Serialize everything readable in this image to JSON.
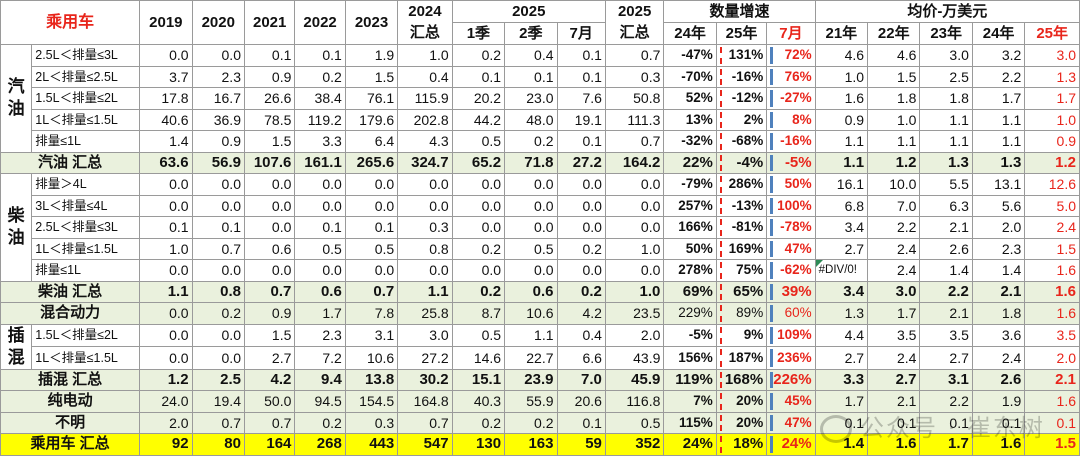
{
  "header": {
    "title": "乘用车",
    "years": [
      "2019",
      "2020",
      "2021",
      "2022",
      "2023"
    ],
    "y2024": "2024",
    "y2024_sub": "汇总",
    "y2025": "2025",
    "q1": "1季",
    "q2": "2季",
    "m7": "7月",
    "y2025t": "2025",
    "y2025t_sub": "汇总",
    "growth": "数量增速",
    "g24": "24年",
    "g25": "25年",
    "g7": "7月",
    "price": "均价-万美元",
    "p21": "21年",
    "p22": "22年",
    "p23": "23年",
    "p24": "24年",
    "p25": "25年"
  },
  "groups": [
    {
      "label": "汽油",
      "rows": [
        {
          "label": "2.5L＜排量≤3L",
          "v": [
            "0.0",
            "0.0",
            "0.1",
            "0.1",
            "1.9",
            "1.0",
            "0.2",
            "0.4",
            "0.1",
            "0.7"
          ],
          "g": [
            "-47%",
            "131%",
            "72%"
          ],
          "p": [
            "4.6",
            "4.6",
            "3.0",
            "3.2",
            "3.0"
          ]
        },
        {
          "label": "2L＜排量≤2.5L",
          "v": [
            "3.7",
            "2.3",
            "0.9",
            "0.2",
            "1.5",
            "0.4",
            "0.1",
            "0.1",
            "0.1",
            "0.3"
          ],
          "g": [
            "-70%",
            "-16%",
            "76%"
          ],
          "p": [
            "1.0",
            "1.5",
            "2.5",
            "2.2",
            "1.3"
          ]
        },
        {
          "label": "1.5L＜排量≤2L",
          "v": [
            "17.8",
            "16.7",
            "26.6",
            "38.4",
            "76.1",
            "115.9",
            "20.2",
            "23.0",
            "7.6",
            "50.8"
          ],
          "g": [
            "52%",
            "-12%",
            "-27%"
          ],
          "p": [
            "1.6",
            "1.8",
            "1.8",
            "1.7",
            "1.7"
          ]
        },
        {
          "label": "1L＜排量≤1.5L",
          "v": [
            "40.6",
            "36.9",
            "78.5",
            "119.2",
            "179.6",
            "202.8",
            "44.2",
            "48.0",
            "19.1",
            "111.3"
          ],
          "g": [
            "13%",
            "2%",
            "8%"
          ],
          "p": [
            "0.9",
            "1.0",
            "1.1",
            "1.1",
            "1.0"
          ]
        },
        {
          "label": "排量≤1L",
          "v": [
            "1.4",
            "0.9",
            "1.5",
            "3.3",
            "6.4",
            "4.3",
            "0.5",
            "0.2",
            "0.1",
            "0.7"
          ],
          "g": [
            "-32%",
            "-68%",
            "-16%"
          ],
          "p": [
            "1.1",
            "1.1",
            "1.1",
            "1.1",
            "0.9"
          ]
        }
      ],
      "total": {
        "label": "汽油 汇总",
        "v": [
          "63.6",
          "56.9",
          "107.6",
          "161.1",
          "265.6",
          "324.7",
          "65.2",
          "71.8",
          "27.2",
          "164.2"
        ],
        "g": [
          "22%",
          "-4%",
          "-5%"
        ],
        "p": [
          "1.1",
          "1.2",
          "1.3",
          "1.3",
          "1.2"
        ]
      }
    },
    {
      "label": "柴油",
      "rows": [
        {
          "label": "排量＞4L",
          "v": [
            "0.0",
            "0.0",
            "0.0",
            "0.0",
            "0.0",
            "0.0",
            "0.0",
            "0.0",
            "0.0",
            "0.0"
          ],
          "g": [
            "-79%",
            "286%",
            "50%"
          ],
          "p": [
            "16.1",
            "10.0",
            "5.5",
            "13.1",
            "12.6"
          ]
        },
        {
          "label": "3L＜排量≤4L",
          "v": [
            "0.0",
            "0.0",
            "0.0",
            "0.0",
            "0.0",
            "0.0",
            "0.0",
            "0.0",
            "0.0",
            "0.0"
          ],
          "g": [
            "257%",
            "-13%",
            "100%"
          ],
          "p": [
            "6.8",
            "7.0",
            "6.3",
            "5.6",
            "5.0"
          ]
        },
        {
          "label": "2.5L＜排量≤3L",
          "v": [
            "0.1",
            "0.1",
            "0.0",
            "0.1",
            "0.1",
            "0.3",
            "0.0",
            "0.0",
            "0.0",
            "0.0"
          ],
          "g": [
            "166%",
            "-81%",
            "-78%"
          ],
          "p": [
            "3.4",
            "2.2",
            "2.1",
            "2.0",
            "2.4"
          ]
        },
        {
          "label": "1L＜排量≤1.5L",
          "v": [
            "1.0",
            "0.7",
            "0.6",
            "0.5",
            "0.5",
            "0.8",
            "0.2",
            "0.5",
            "0.2",
            "1.0"
          ],
          "g": [
            "50%",
            "169%",
            "47%"
          ],
          "p": [
            "2.7",
            "2.4",
            "2.6",
            "2.3",
            "1.5"
          ]
        },
        {
          "label": "排量≤1L",
          "v": [
            "0.0",
            "0.0",
            "0.0",
            "0.0",
            "0.0",
            "0.0",
            "0.0",
            "0.0",
            "0.0",
            "0.0"
          ],
          "g": [
            "278%",
            "75%",
            "-62%"
          ],
          "p": [
            "#DIV/0!",
            "2.4",
            "1.4",
            "1.4",
            "1.6"
          ]
        }
      ],
      "total": {
        "label": "柴油 汇总",
        "v": [
          "1.1",
          "0.8",
          "0.7",
          "0.6",
          "0.7",
          "1.1",
          "0.2",
          "0.6",
          "0.2",
          "1.0"
        ],
        "g": [
          "69%",
          "65%",
          "39%"
        ],
        "p": [
          "3.4",
          "3.0",
          "2.2",
          "2.1",
          "1.6"
        ]
      }
    },
    {
      "label": "",
      "rows": [],
      "total": {
        "label": "混合动力",
        "v": [
          "0.0",
          "0.2",
          "0.9",
          "1.7",
          "7.8",
          "25.8",
          "8.7",
          "10.6",
          "4.2",
          "23.5"
        ],
        "g": [
          "229%",
          "89%",
          "60%"
        ],
        "p": [
          "1.3",
          "1.7",
          "2.1",
          "1.8",
          "1.6"
        ]
      }
    },
    {
      "label": "插混",
      "rows": [
        {
          "label": "1.5L＜排量≤2L",
          "v": [
            "0.0",
            "0.0",
            "1.5",
            "2.3",
            "3.1",
            "3.0",
            "0.5",
            "1.1",
            "0.4",
            "2.0"
          ],
          "g": [
            "-5%",
            "9%",
            "109%"
          ],
          "p": [
            "4.4",
            "3.5",
            "3.5",
            "3.6",
            "3.5"
          ]
        },
        {
          "label": "1L＜排量≤1.5L",
          "v": [
            "0.0",
            "0.0",
            "2.7",
            "7.2",
            "10.6",
            "27.2",
            "14.6",
            "22.7",
            "6.6",
            "43.9"
          ],
          "g": [
            "156%",
            "187%",
            "236%"
          ],
          "p": [
            "2.7",
            "2.4",
            "2.7",
            "2.4",
            "2.0"
          ]
        }
      ],
      "total": {
        "label": "插混 汇总",
        "v": [
          "1.2",
          "2.5",
          "4.2",
          "9.4",
          "13.8",
          "30.2",
          "15.1",
          "23.9",
          "7.0",
          "45.9"
        ],
        "g": [
          "119%",
          "168%",
          "226%"
        ],
        "p": [
          "3.3",
          "2.7",
          "3.1",
          "2.6",
          "2.1"
        ]
      }
    }
  ],
  "others": [
    {
      "label": "纯电动",
      "v": [
        "24.0",
        "19.4",
        "50.0",
        "94.5",
        "154.5",
        "164.8",
        "40.3",
        "55.9",
        "20.6",
        "116.8"
      ],
      "g": [
        "7%",
        "20%",
        "45%"
      ],
      "p": [
        "1.7",
        "2.1",
        "2.2",
        "1.9",
        "1.6"
      ]
    },
    {
      "label": "不明",
      "v": [
        "2.0",
        "0.7",
        "0.7",
        "0.2",
        "0.3",
        "0.7",
        "0.2",
        "0.2",
        "0.1",
        "0.5"
      ],
      "g": [
        "115%",
        "20%",
        "47%"
      ],
      "p": [
        "0.1",
        "0.1",
        "0.1",
        "0.1",
        "0.1"
      ]
    }
  ],
  "grand_total": {
    "label": "乘用车 汇总",
    "v": [
      "92",
      "80",
      "164",
      "268",
      "443",
      "547",
      "130",
      "163",
      "59",
      "352"
    ],
    "g": [
      "24%",
      "18%",
      "24%"
    ],
    "p": [
      "1.4",
      "1.6",
      "1.7",
      "1.6",
      "1.5"
    ]
  },
  "watermark": "公众号 · 崔东树",
  "colors": {
    "red": "#e8251b",
    "green_fill": "#eaf1dd",
    "yellow_fill": "#ffff00",
    "bar_blue": "#4f81bd"
  }
}
